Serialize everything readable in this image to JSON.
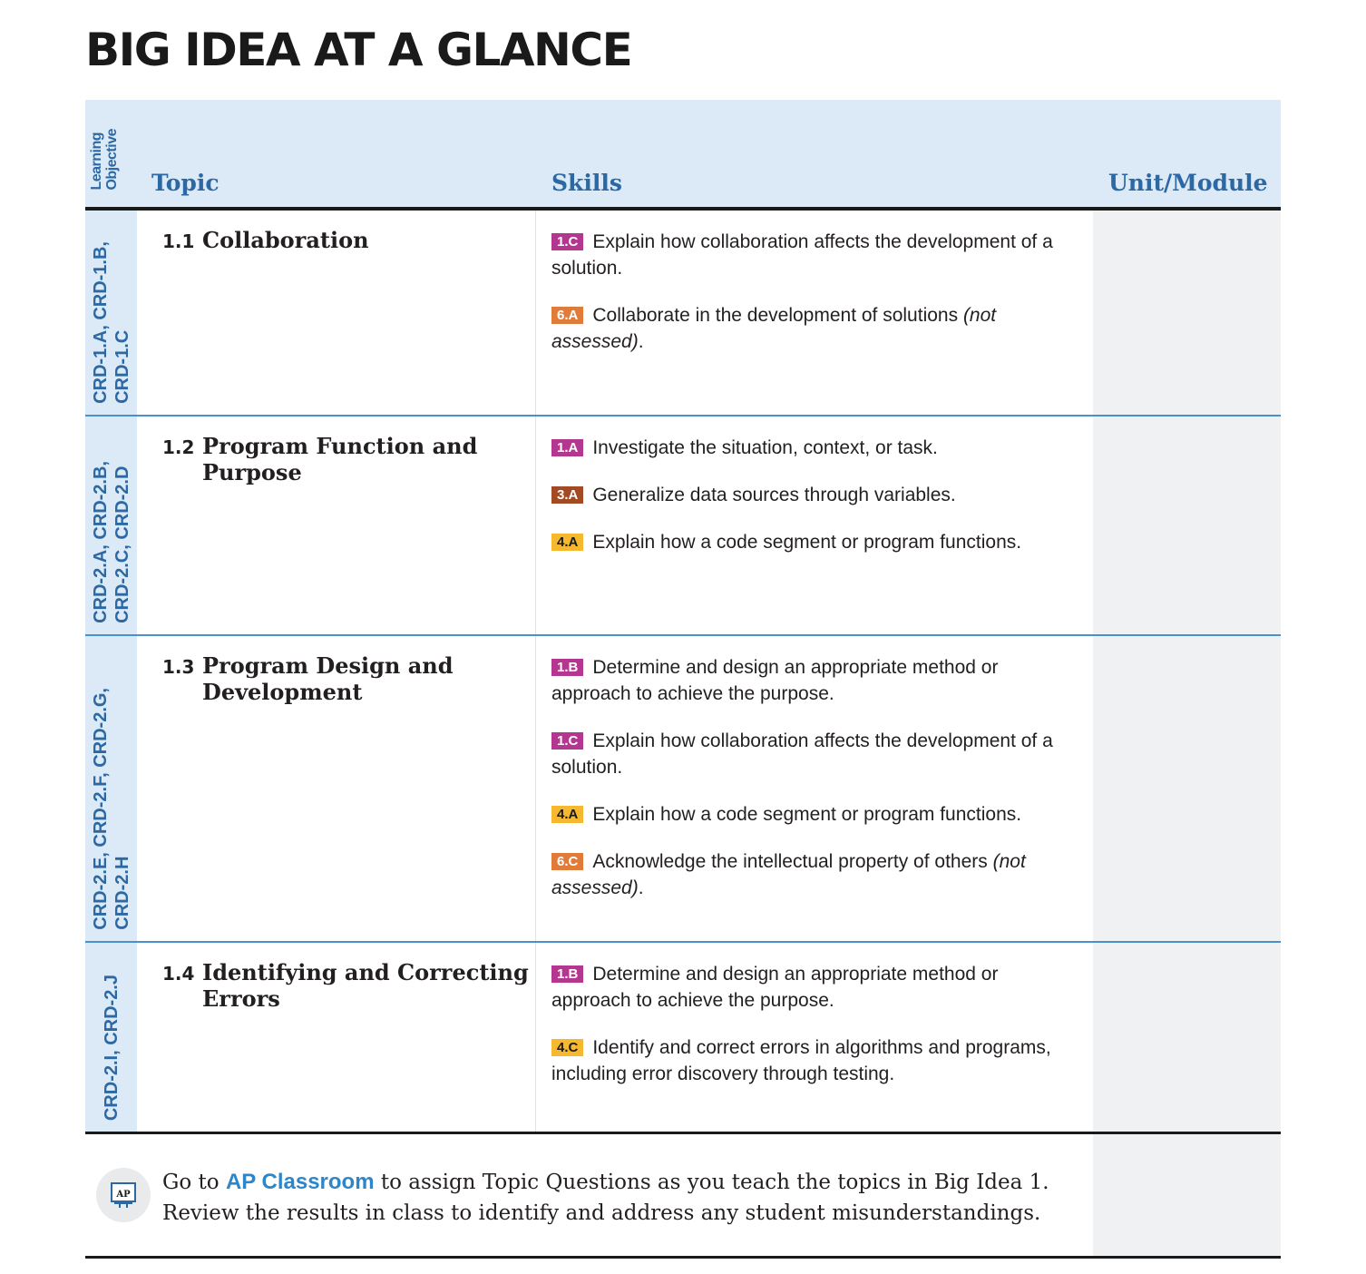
{
  "title": "BIG IDEA AT A GLANCE",
  "header": {
    "learning_objective": "Learning\nObjective",
    "topic": "Topic",
    "skills": "Skills",
    "unit_module": "Unit/Module"
  },
  "rows": [
    {
      "objectives": "CRD-1.A, CRD-1.B,\nCRD-1.C",
      "topic_number": "1.1",
      "topic_name": "Collaboration",
      "skills": [
        {
          "code": "1.C",
          "text": "Explain how collaboration affects the development of a solution.",
          "note": ""
        },
        {
          "code": "6.A",
          "text": "Collaborate in the development of solutions ",
          "note": "(not assessed)"
        }
      ]
    },
    {
      "objectives": "CRD-2.A, CRD-2.B,\nCRD-2.C, CRD-2.D",
      "topic_number": "1.2",
      "topic_name": "Program Function and Purpose",
      "skills": [
        {
          "code": "1.A",
          "text": "Investigate the situation, context, or task.",
          "note": ""
        },
        {
          "code": "3.A",
          "text": "Generalize data sources through variables.",
          "note": ""
        },
        {
          "code": "4.A",
          "text": "Explain how a code segment or program functions.",
          "note": ""
        }
      ]
    },
    {
      "objectives": "CRD-2.E, CRD-2.F, CRD-2.G,\nCRD-2.H",
      "topic_number": "1.3",
      "topic_name": "Program Design and Development",
      "skills": [
        {
          "code": "1.B",
          "text": "Determine and design an appropriate method or approach to achieve the purpose.",
          "note": ""
        },
        {
          "code": "1.C",
          "text": "Explain how collaboration affects the development of a solution.",
          "note": ""
        },
        {
          "code": "4.A",
          "text": "Explain how a code segment or program functions.",
          "note": ""
        },
        {
          "code": "6.C",
          "text": "Acknowledge the intellectual property of others ",
          "note": "(not assessed)"
        }
      ]
    },
    {
      "objectives": "CRD-2.I, CRD-2.J",
      "topic_number": "1.4",
      "topic_name": "Identifying and Correcting Errors",
      "skills": [
        {
          "code": "1.B",
          "text": "Determine and design an appropriate method or approach to achieve the purpose.",
          "note": ""
        },
        {
          "code": "4.C",
          "text": "Identify and correct errors in algorithms and programs, including error discovery through testing.",
          "note": ""
        }
      ]
    }
  ],
  "footer": {
    "icon_label": "AP",
    "text_before": "Go to ",
    "link": "AP Classroom",
    "text_after": " to assign Topic Questions as you teach the topics in Big Idea 1. Review the results in class to identify and address any student misunderstandings."
  },
  "colors": {
    "header_bg": "#dbeaf6",
    "header_text": "#2c68a3",
    "skill_1": "#b3378f",
    "skill_3": "#a14a24",
    "skill_4": "#f5b82e",
    "skill_6": "#e07b39",
    "link": "#2d86c9"
  }
}
